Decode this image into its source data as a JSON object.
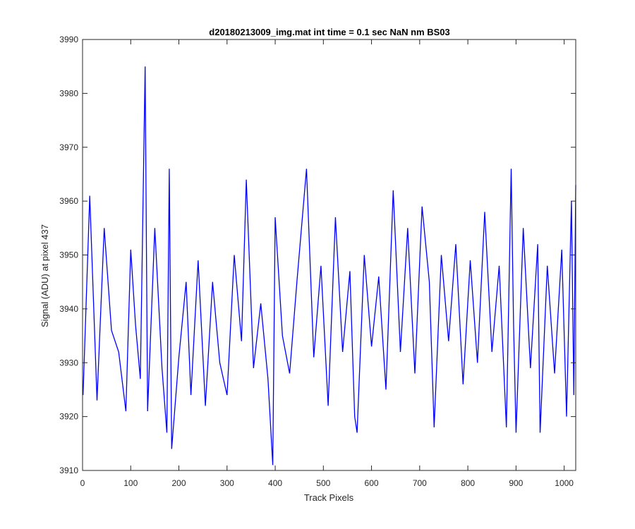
{
  "chart_data": {
    "type": "line",
    "title": "d20180213009_img.mat int time = 0.1 sec  NaN nm BS03",
    "xlabel": "Track Pixels",
    "ylabel": "Signal (ADU) at pixel 437",
    "xlim": [
      0,
      1024
    ],
    "ylim": [
      3910,
      3990
    ],
    "xticks": [
      "0",
      "100",
      "200",
      "300",
      "400",
      "500",
      "600",
      "700",
      "800",
      "900",
      "1000"
    ],
    "yticks": [
      "3910",
      "3920",
      "3930",
      "3940",
      "3950",
      "3960",
      "3970",
      "3980",
      "3990"
    ],
    "grid": false,
    "line_color": "#0000ff",
    "series": [
      {
        "x": [
          1,
          15,
          30,
          45,
          60,
          75,
          90,
          100,
          110,
          120,
          130,
          135,
          150,
          165,
          175,
          180,
          185,
          200,
          215,
          225,
          240,
          255,
          270,
          285,
          300,
          315,
          330,
          340,
          355,
          370,
          385,
          395,
          400,
          415,
          430,
          445,
          465,
          480,
          495,
          510,
          525,
          540,
          555,
          565,
          570,
          585,
          600,
          615,
          630,
          645,
          660,
          675,
          690,
          705,
          720,
          730,
          745,
          760,
          775,
          790,
          805,
          820,
          835,
          850,
          865,
          880,
          890,
          895,
          900,
          915,
          930,
          945,
          950,
          965,
          980,
          995,
          1005,
          1015,
          1020,
          1024
        ],
        "y": [
          3924,
          3961,
          3923,
          3955,
          3936,
          3932,
          3921,
          3951,
          3937,
          3927,
          3985,
          3921,
          3955,
          3929,
          3917,
          3966,
          3914,
          3931,
          3945,
          3924,
          3949,
          3922,
          3945,
          3930,
          3924,
          3950,
          3934,
          3964,
          3929,
          3941,
          3927,
          3911,
          3957,
          3935,
          3928,
          3945,
          3966,
          3931,
          3948,
          3922,
          3957,
          3932,
          3947,
          3920,
          3917,
          3950,
          3933,
          3946,
          3925,
          3962,
          3932,
          3955,
          3928,
          3959,
          3945,
          3918,
          3950,
          3934,
          3952,
          3926,
          3949,
          3930,
          3958,
          3932,
          3948,
          3918,
          3966,
          3937,
          3917,
          3955,
          3929,
          3952,
          3917,
          3948,
          3928,
          3951,
          3920,
          3960,
          3924,
          3963
        ]
      }
    ]
  }
}
